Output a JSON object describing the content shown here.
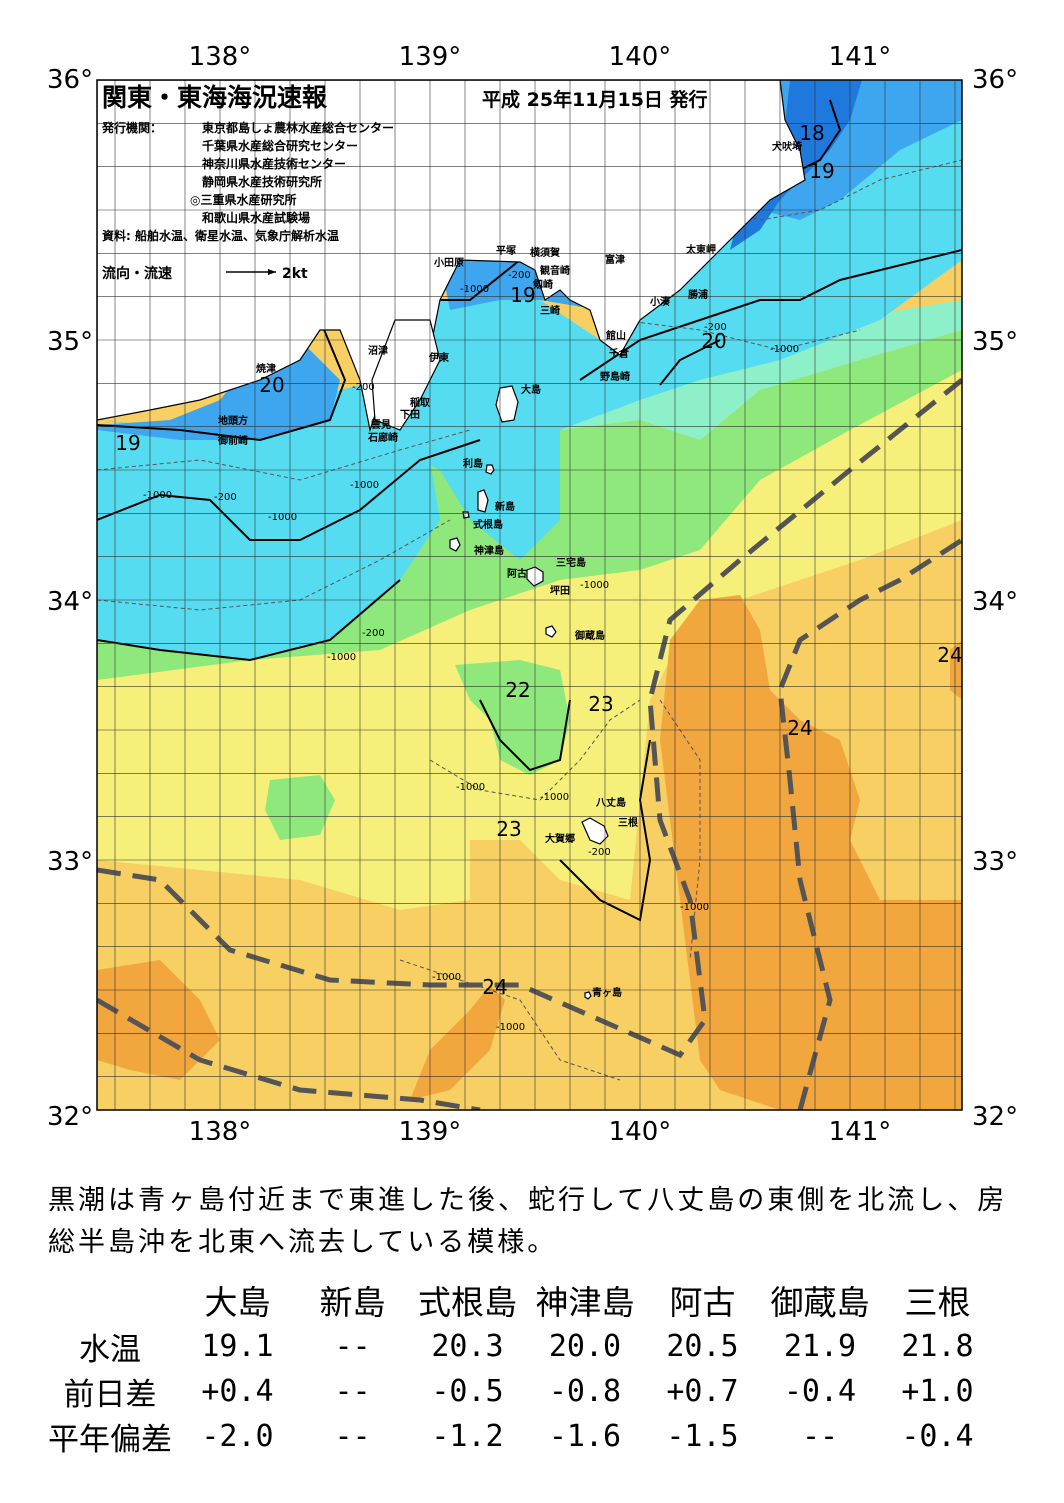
{
  "title": "関東・東海海況速報",
  "issue_date": "平成 25年11月15日 発行",
  "publisher_label": "発行機関：",
  "publishers": [
    "東京都島しょ農林水産総合センター",
    "千葉県水産総合研究センター",
    "神奈川県水産技術センター",
    "静岡県水産技術研究所",
    "◎三重県水産研究所",
    "和歌山県水産試験場"
  ],
  "sources": "資料: 船舶水温、衛星水温、気象庁解析水温",
  "current_legend": {
    "label": "流向・流速",
    "speed": "2kt"
  },
  "lon_labels": [
    "138°",
    "139°",
    "140°",
    "141°"
  ],
  "lat_labels": [
    "36°",
    "35°",
    "34°",
    "33°",
    "32°"
  ],
  "isotherm_labels": [
    "18",
    "19",
    "19",
    "19",
    "20",
    "20",
    "22",
    "23",
    "23",
    "24",
    "24",
    "24"
  ],
  "depth_labels": [
    "-200",
    "-1000"
  ],
  "place_names": {
    "inubozaki": "犬吠埼",
    "taitozaki": "太東岬",
    "katsuura": "勝浦",
    "kominato": "小湊",
    "futtsu": "富津",
    "tateyama": "館山",
    "chikura": "千倉",
    "nojimazaki": "野島崎",
    "yokosuka": "横須賀",
    "kannonzaki": "観音崎",
    "hiratsuka": "平塚",
    "odawara": "小田原",
    "tsurugizaki": "剱崎",
    "misaki": "三崎",
    "numazu": "沼津",
    "ito": "伊東",
    "inatori": "稲取",
    "shimoda": "下田",
    "kumomi": "雲見",
    "irozaki": "石廊崎",
    "yaizu": "焼津",
    "jitogata": "地頭方",
    "omaezaki": "御前崎",
    "oshima": "大島",
    "toshima": "利島",
    "niijima": "新島",
    "shikinejima": "式根島",
    "kozushima": "神津島",
    "miyakejima": "三宅島",
    "ako": "阿古",
    "tsubota": "坪田",
    "mikurajima": "御蔵島",
    "hachijojima": "八丈島",
    "mitsune": "三根",
    "okago": "大賀郷",
    "aogashima": "青ヶ島"
  },
  "summary": "黒潮は青ヶ島付近まで東進した後、蛇行して八丈島の東側を北流し、房総半島沖を北東へ流去している模様。",
  "table": {
    "columns": [
      "大島",
      "新島",
      "式根島",
      "神津島",
      "阿古",
      "御蔵島",
      "三根"
    ],
    "rows": [
      {
        "label": "水温",
        "values": [
          "19.1",
          "--",
          "20.3",
          "20.0",
          "20.5",
          "21.9",
          "21.8"
        ]
      },
      {
        "label": "前日差",
        "values": [
          "+0.4",
          "--",
          "-0.5",
          "-0.8",
          "+0.7",
          "-0.4",
          "+1.0"
        ]
      },
      {
        "label": "平年偏差",
        "values": [
          "-2.0",
          "--",
          "-1.2",
          "-1.6",
          "-1.5",
          "--",
          "-0.4"
        ]
      }
    ]
  },
  "colors": {
    "t18": "#1f78dc",
    "t19": "#3ea6ee",
    "t20": "#56dcf0",
    "t21": "#8ef0c8",
    "t22": "#8fe87c",
    "t23": "#f6f07a",
    "t235": "#f8d262",
    "t24": "#f2a63e",
    "kuroshio_axis": "#555555"
  }
}
